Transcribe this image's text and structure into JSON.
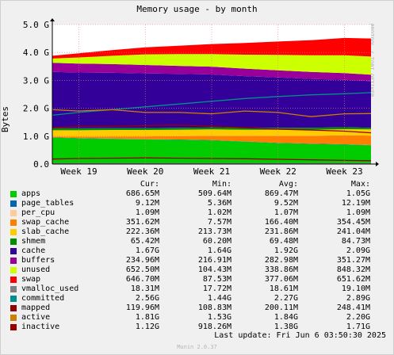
{
  "title": "Memory usage - by month",
  "ylabel": "Bytes",
  "side_text": "RRDTOOL / TOBI OETIKER",
  "footer": {
    "last_update": "Last update: Fri Jun  6 03:50:30 2025",
    "munin": "Munin 2.0.37"
  },
  "legend_headers": {
    "cur": "Cur:",
    "min": "Min:",
    "avg": "Avg:",
    "max": "Max:"
  },
  "legend": [
    {
      "name": "apps",
      "color": "#00cc00",
      "cur": "686.65M",
      "min": "509.64M",
      "avg": "869.47M",
      "max": "1.05G"
    },
    {
      "name": "page_tables",
      "color": "#0066b3",
      "cur": "9.12M",
      "min": "5.36M",
      "avg": "9.52M",
      "max": "12.19M"
    },
    {
      "name": "per_cpu",
      "color": "#ffcc99",
      "cur": "1.09M",
      "min": "1.02M",
      "avg": "1.07M",
      "max": "1.09M"
    },
    {
      "name": "swap_cache",
      "color": "#ff8000",
      "cur": "351.62M",
      "min": "7.57M",
      "avg": "166.40M",
      "max": "354.45M"
    },
    {
      "name": "slab_cache",
      "color": "#ffcc00",
      "cur": "222.36M",
      "min": "213.73M",
      "avg": "231.86M",
      "max": "241.04M"
    },
    {
      "name": "shmem",
      "color": "#008f00",
      "cur": "65.42M",
      "min": "60.20M",
      "avg": "69.48M",
      "max": "84.73M"
    },
    {
      "name": "cache",
      "color": "#330099",
      "cur": "1.67G",
      "min": "1.64G",
      "avg": "1.92G",
      "max": "2.09G"
    },
    {
      "name": "buffers",
      "color": "#990099",
      "cur": "234.96M",
      "min": "216.91M",
      "avg": "282.98M",
      "max": "351.27M"
    },
    {
      "name": "unused",
      "color": "#ccff00",
      "cur": "652.50M",
      "min": "104.43M",
      "avg": "338.86M",
      "max": "848.32M"
    },
    {
      "name": "swap",
      "color": "#ff0000",
      "cur": "646.70M",
      "min": "87.53M",
      "avg": "377.06M",
      "max": "651.62M"
    },
    {
      "name": "vmalloc_used",
      "color": "#808080",
      "cur": "18.31M",
      "min": "17.72M",
      "avg": "18.61M",
      "max": "19.10M"
    },
    {
      "name": "committed",
      "color": "#008f8f",
      "cur": "2.56G",
      "min": "1.44G",
      "avg": "2.27G",
      "max": "2.89G"
    },
    {
      "name": "mapped",
      "color": "#8f0000",
      "cur": "119.96M",
      "min": "108.83M",
      "avg": "200.11M",
      "max": "248.41M"
    },
    {
      "name": "active",
      "color": "#cc8000",
      "cur": "1.81G",
      "min": "1.53G",
      "avg": "1.84G",
      "max": "2.20G"
    },
    {
      "name": "inactive",
      "color": "#990000",
      "cur": "1.12G",
      "min": "918.26M",
      "avg": "1.38G",
      "max": "1.71G"
    }
  ],
  "chart_data": {
    "type": "area",
    "title": "Memory usage - by month",
    "ylabel": "Bytes",
    "x_unit": "week",
    "xlim": [
      18.6,
      23.4
    ],
    "ylim": [
      0,
      5.0
    ],
    "y_unit": "G",
    "y_ticks": [
      "0.0",
      "1.0 G",
      "2.0 G",
      "3.0 G",
      "4.0 G",
      "5.0 G"
    ],
    "y_tick_values": [
      0,
      1,
      2,
      3,
      4,
      5
    ],
    "x_ticks": [
      "Week 19",
      "Week 20",
      "Week 21",
      "Week 22",
      "Week 23"
    ],
    "x_tick_values": [
      19,
      20,
      21,
      22,
      23
    ],
    "grid": true,
    "x": [
      18.6,
      19.0,
      19.5,
      20.0,
      20.5,
      21.0,
      21.5,
      22.0,
      22.5,
      23.0,
      23.4
    ],
    "stacked_series": [
      {
        "name": "apps",
        "color": "#00cc00",
        "values": [
          0.95,
          0.92,
          0.9,
          0.88,
          0.87,
          0.85,
          0.8,
          0.75,
          0.72,
          0.7,
          0.67
        ]
      },
      {
        "name": "page_tables",
        "color": "#0066b3",
        "values": [
          0.01,
          0.01,
          0.01,
          0.01,
          0.01,
          0.01,
          0.01,
          0.01,
          0.01,
          0.01,
          0.01
        ]
      },
      {
        "name": "per_cpu",
        "color": "#ffcc99",
        "values": [
          0.001,
          0.001,
          0.001,
          0.001,
          0.001,
          0.001,
          0.001,
          0.001,
          0.001,
          0.001,
          0.001
        ]
      },
      {
        "name": "swap_cache",
        "color": "#ff8000",
        "values": [
          0.02,
          0.05,
          0.08,
          0.1,
          0.12,
          0.15,
          0.2,
          0.25,
          0.28,
          0.32,
          0.34
        ]
      },
      {
        "name": "slab_cache",
        "color": "#ffcc00",
        "values": [
          0.23,
          0.23,
          0.23,
          0.23,
          0.23,
          0.23,
          0.22,
          0.22,
          0.22,
          0.22,
          0.22
        ]
      },
      {
        "name": "shmem",
        "color": "#008f00",
        "values": [
          0.07,
          0.07,
          0.07,
          0.07,
          0.07,
          0.07,
          0.07,
          0.07,
          0.07,
          0.07,
          0.06
        ]
      },
      {
        "name": "cache",
        "color": "#330099",
        "values": [
          2.02,
          2.0,
          1.98,
          1.96,
          1.93,
          1.9,
          1.85,
          1.8,
          1.75,
          1.7,
          1.67
        ]
      },
      {
        "name": "buffers",
        "color": "#990099",
        "values": [
          0.33,
          0.32,
          0.31,
          0.3,
          0.29,
          0.28,
          0.27,
          0.26,
          0.25,
          0.24,
          0.23
        ]
      },
      {
        "name": "unused",
        "color": "#ccff00",
        "values": [
          0.15,
          0.22,
          0.3,
          0.38,
          0.42,
          0.45,
          0.5,
          0.55,
          0.6,
          0.64,
          0.65
        ]
      },
      {
        "name": "swap",
        "color": "#ff0000",
        "values": [
          0.1,
          0.15,
          0.2,
          0.25,
          0.3,
          0.36,
          0.42,
          0.48,
          0.54,
          0.62,
          0.65
        ]
      }
    ],
    "line_series": [
      {
        "name": "vmalloc_used",
        "color": "#808080",
        "values": [
          0.02,
          0.02,
          0.02,
          0.02,
          0.02,
          0.02,
          0.02,
          0.02,
          0.02,
          0.02,
          0.02
        ]
      },
      {
        "name": "committed",
        "color": "#008f8f",
        "values": [
          1.75,
          1.85,
          1.95,
          2.05,
          2.15,
          2.25,
          2.35,
          2.42,
          2.48,
          2.52,
          2.56
        ]
      },
      {
        "name": "mapped",
        "color": "#8f0000",
        "values": [
          0.18,
          0.2,
          0.21,
          0.22,
          0.21,
          0.2,
          0.19,
          0.17,
          0.15,
          0.13,
          0.12
        ]
      },
      {
        "name": "active",
        "color": "#cc8000",
        "values": [
          1.95,
          1.9,
          1.95,
          1.85,
          1.85,
          1.8,
          1.9,
          1.85,
          1.7,
          1.8,
          1.81
        ]
      },
      {
        "name": "inactive",
        "color": "#990000",
        "values": [
          1.3,
          1.35,
          1.35,
          1.38,
          1.4,
          1.35,
          1.3,
          1.25,
          1.22,
          1.18,
          1.12
        ]
      }
    ]
  }
}
